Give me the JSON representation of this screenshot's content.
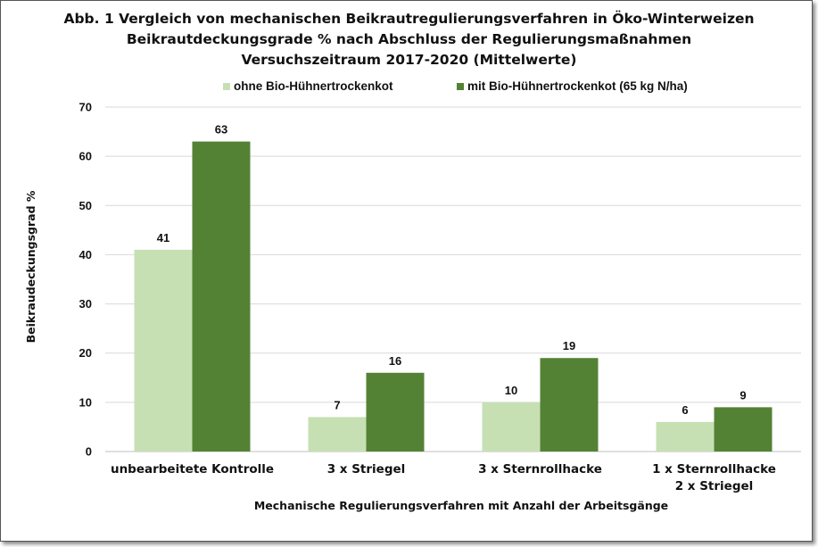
{
  "chart_data": {
    "type": "bar",
    "title": [
      "Abb. 1 Vergleich von mechanischen Beikrautregulierungsverfahren in Öko-Winterweizen",
      "Beikrautdeckungsgrade %  nach Abschluss der Regulierungsmaßnahmen",
      "Versuchszeitraum 2017-2020 (Mittelwerte)"
    ],
    "categories": [
      [
        "unbearbeitete Kontrolle"
      ],
      [
        "3 x Striegel"
      ],
      [
        "3 x Sternrollhacke"
      ],
      [
        "1 x Sternrollhacke",
        "2 x Striegel"
      ]
    ],
    "series": [
      {
        "name": "ohne Bio-Hühnertrockenkot",
        "color": "#c6e0b4",
        "values": [
          41,
          7,
          10,
          6
        ]
      },
      {
        "name": "mit Bio-Hühnertrockenkot (65 kg N/ha)",
        "color": "#548235",
        "values": [
          63,
          16,
          19,
          9
        ]
      }
    ],
    "xlabel": "Mechanische Regulierungsverfahren mit Anzahl der Arbeitsgänge",
    "ylabel": "Beikraudeckungsgrad %",
    "ylim": [
      0,
      70
    ],
    "yticks": [
      0,
      10,
      20,
      30,
      40,
      50,
      60,
      70
    ],
    "grid": true,
    "legend_position": "top"
  }
}
